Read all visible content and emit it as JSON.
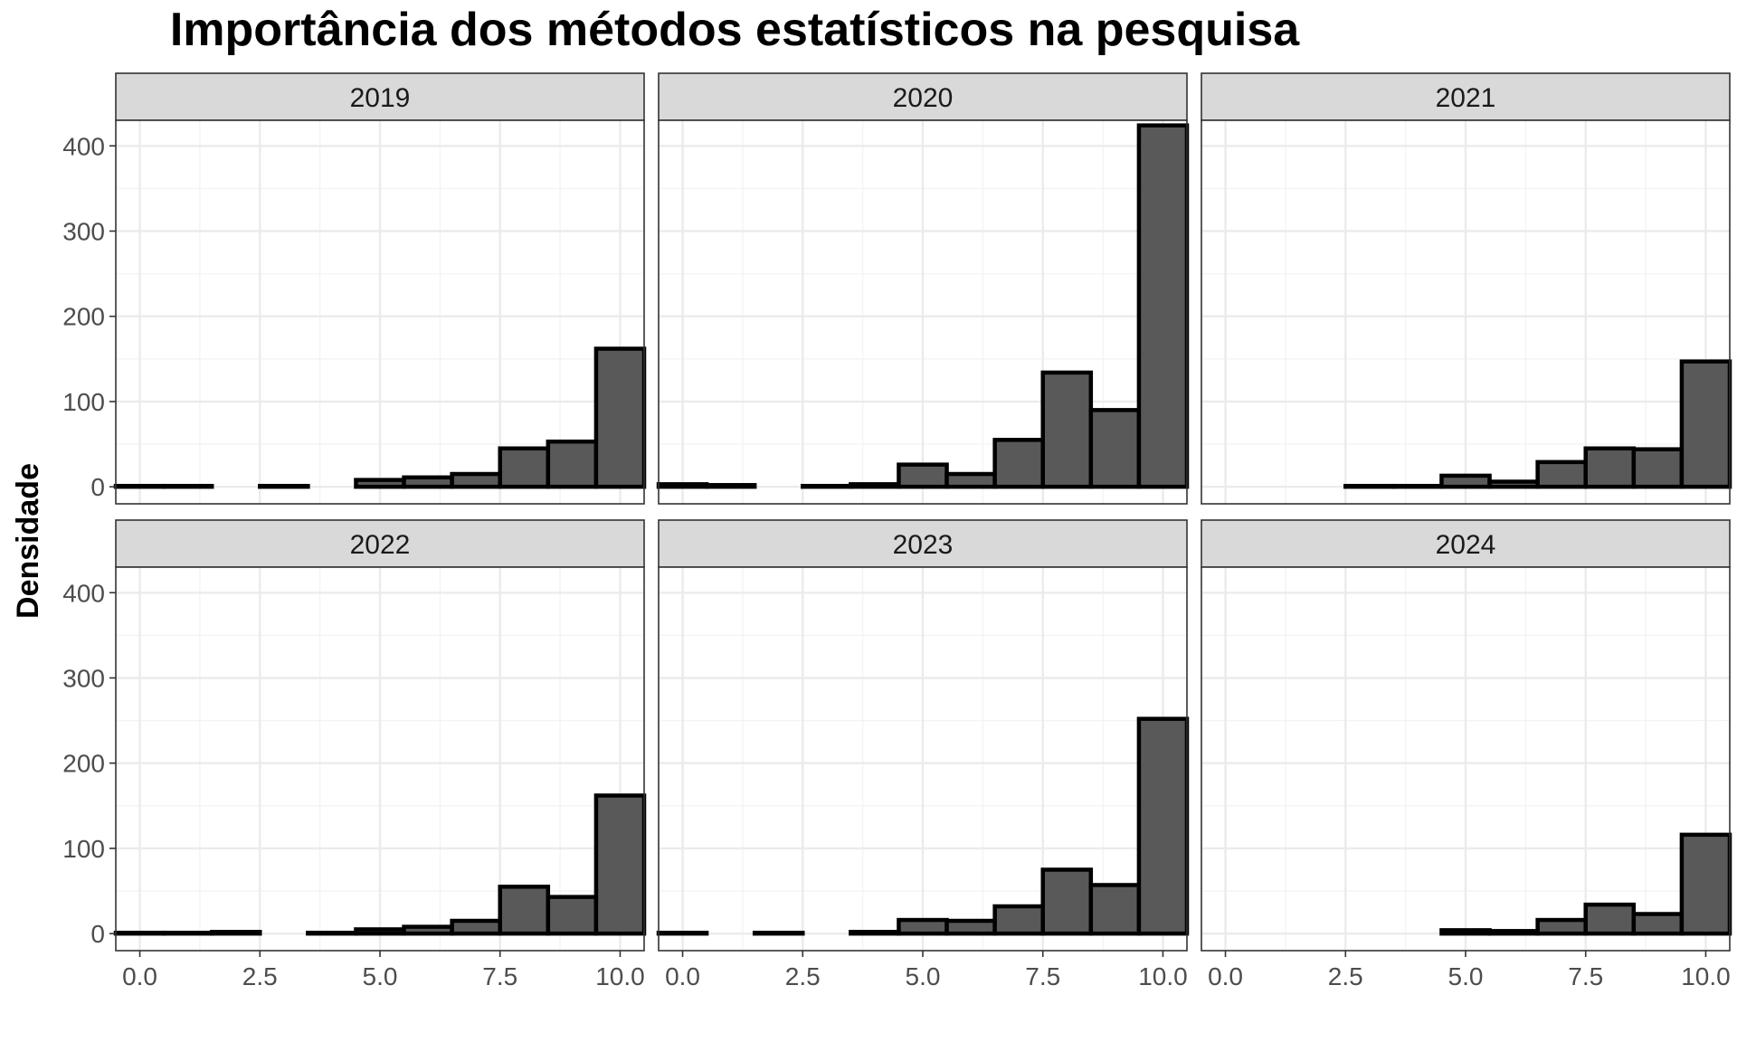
{
  "chart_data": {
    "type": "bar",
    "title": "Importância dos métodos estatísticos na pesquisa",
    "xlabel": "",
    "ylabel": "Densidade",
    "xlim": [
      -0.5,
      10.5
    ],
    "ylim": [
      0,
      430
    ],
    "x_ticks": [
      "0.0",
      "2.5",
      "5.0",
      "7.5",
      "10.0"
    ],
    "y_ticks": [
      "0",
      "100",
      "200",
      "300",
      "400"
    ],
    "grid": true,
    "bin_centers": [
      0,
      1,
      2,
      3,
      4,
      5,
      6,
      7,
      8,
      9,
      10
    ],
    "bin_width": 1,
    "colors": {
      "bar_fill": "#595959",
      "bar_stroke": "#000000",
      "strip_fill": "#d9d9d9",
      "grid": "#ebebeb",
      "panel_border": "#333333"
    },
    "panels": [
      {
        "facet": "2019",
        "values": [
          1,
          1,
          0,
          1,
          0,
          8,
          11,
          15,
          45,
          53,
          162
        ]
      },
      {
        "facet": "2020",
        "values": [
          3,
          2,
          0,
          1,
          3,
          26,
          15,
          55,
          134,
          90,
          424
        ]
      },
      {
        "facet": "2021",
        "values": [
          0,
          0,
          0,
          1,
          1,
          13,
          6,
          29,
          45,
          44,
          147
        ]
      },
      {
        "facet": "2022",
        "values": [
          1,
          1,
          2,
          0,
          1,
          5,
          8,
          15,
          55,
          43,
          162
        ]
      },
      {
        "facet": "2023",
        "values": [
          1,
          0,
          1,
          0,
          2,
          16,
          15,
          32,
          75,
          57,
          252
        ]
      },
      {
        "facet": "2024",
        "values": [
          0,
          0,
          0,
          0,
          0,
          4,
          3,
          16,
          34,
          23,
          116
        ]
      }
    ]
  }
}
